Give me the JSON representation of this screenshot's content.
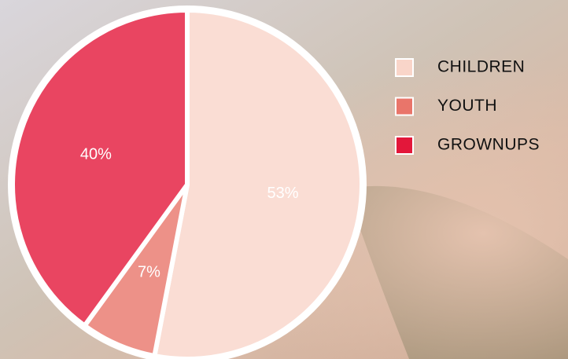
{
  "chart_data": {
    "type": "pie",
    "categories": [
      "CHILDREN",
      "YOUTH",
      "GROWNUPS"
    ],
    "values": [
      53,
      7,
      40
    ],
    "value_labels": [
      "53%",
      "7%",
      "40%"
    ],
    "colors": [
      "#f9d5c9",
      "#e9756a",
      "#e3173a"
    ],
    "legend": "right"
  }
}
